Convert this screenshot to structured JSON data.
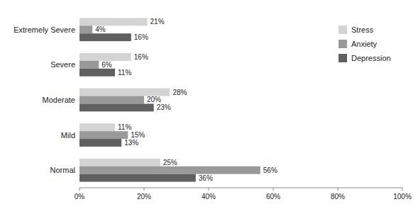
{
  "chart_data": {
    "type": "bar",
    "orientation": "horizontal",
    "categories": [
      "Normal",
      "Mild",
      "Moderate",
      "Severe",
      "Extremely Severe"
    ],
    "series": [
      {
        "name": "Stress",
        "color": "#d4d4d4",
        "values": [
          25,
          11,
          28,
          16,
          21
        ],
        "value_labels": [
          "25%",
          "11%",
          "28%",
          "16%",
          "21%"
        ]
      },
      {
        "name": "Anxiety",
        "color": "#999999",
        "values": [
          56,
          15,
          20,
          6,
          4
        ],
        "value_labels": [
          "56%",
          "15%",
          "20%",
          "6%",
          "4%"
        ]
      },
      {
        "name": "Depression",
        "color": "#606060",
        "values": [
          36,
          13,
          23,
          11,
          16
        ],
        "value_labels": [
          "36%",
          "13%",
          "23%",
          "11%",
          "16%"
        ]
      }
    ],
    "xlim": [
      0,
      100
    ],
    "xticks": [
      {
        "value": 0,
        "label": "0%"
      },
      {
        "value": 20,
        "label": "20%"
      },
      {
        "value": 40,
        "label": "40%"
      },
      {
        "value": 60,
        "label": "60%"
      },
      {
        "value": 80,
        "label": "80%"
      },
      {
        "value": 100,
        "label": "100%"
      }
    ],
    "data_labels": true,
    "legend": "upper right",
    "grid": false
  }
}
